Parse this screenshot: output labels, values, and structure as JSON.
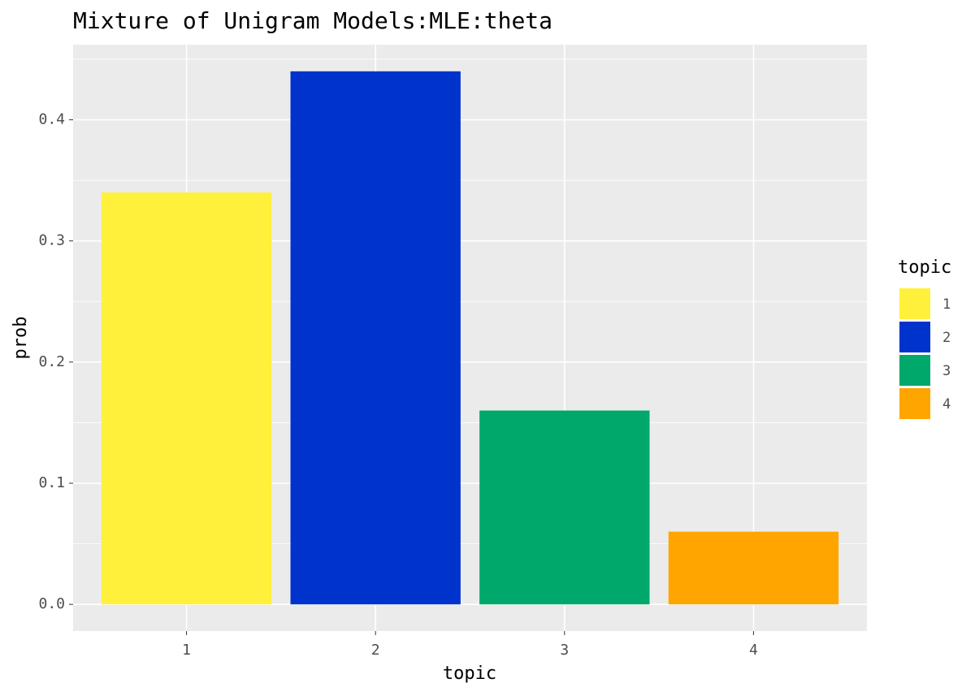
{
  "chart_data": {
    "type": "bar",
    "title": "Mixture of Unigram Models:MLE:theta",
    "x_label": "topic",
    "y_label": "prob",
    "categories": [
      "1",
      "2",
      "3",
      "4"
    ],
    "values": [
      0.34,
      0.44,
      0.16,
      0.06
    ],
    "colors": [
      "#fff03c",
      "#0033cc",
      "#00a86b",
      "#ffa500"
    ],
    "ylim": [
      -0.022,
      0.462
    ],
    "yticks": [
      {
        "value": 0,
        "label": "0.0"
      },
      0.1,
      0.2,
      0.3,
      0.4
    ],
    "yminor": [
      0.05,
      0.15,
      0.25,
      0.35,
      0.45
    ],
    "grid": true,
    "legend_title": "topic",
    "legend": "right"
  }
}
